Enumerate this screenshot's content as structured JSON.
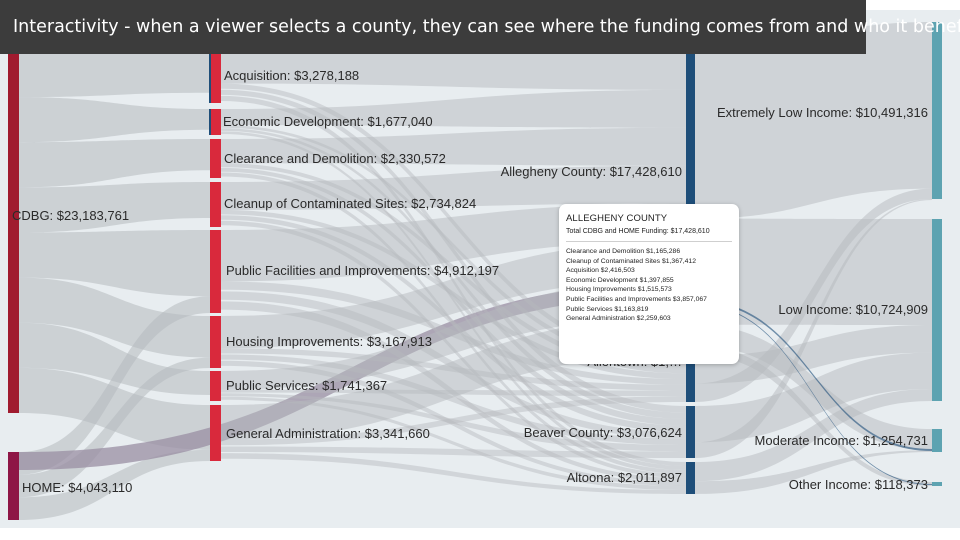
{
  "banner": {
    "text": "Interactivity - when a viewer selects a county, they can see where the funding comes from and who it benefits"
  },
  "tooltip": {
    "title": "ALLEGHENY COUNTY",
    "total": "Total CDBG and HOME Funding: $17,428,610",
    "rows": [
      "Clearance and Demolition $1,165,286",
      "Cleanup of Contaminated Sites $1,367,412",
      "Acquisition $2,416,503",
      "Economic Development $1,397,855",
      "Housing Improvements $1,515,573",
      "Public Facilities and Improvements $3,857,067",
      "Public Services $1,163,819",
      "General Administration $2,259,603"
    ]
  },
  "colors": {
    "cdbg": "#a01b2f",
    "home": "#8e1646",
    "category": "#d9293c",
    "county": "#1e4e79",
    "income": "#5da3b1",
    "link": "#b5b9bd",
    "highlight": "#9a8ea3",
    "background": "#e8edf0"
  },
  "chart_data": {
    "type": "sankey",
    "columns": [
      {
        "name": "sources",
        "nodes": [
          {
            "label": "CDBG: $23,183,761",
            "value": 23183761
          },
          {
            "label": "HOME: $4,043,110",
            "value": 4043110
          }
        ]
      },
      {
        "name": "activities",
        "nodes": [
          {
            "label": "Acquisition: $3,278,188",
            "value": 3278188
          },
          {
            "label": "Economic Development: $1,677,040",
            "value": 1677040
          },
          {
            "label": "Clearance and Demolition: $2,330,572",
            "value": 2330572
          },
          {
            "label": "Cleanup of Contaminated Sites: $2,734,824",
            "value": 2734824
          },
          {
            "label": "Public Facilities and Improvements: $4,912,197",
            "value": 4912197
          },
          {
            "label": "Housing Improvements: $3,167,913",
            "value": 3167913
          },
          {
            "label": "Public Services: $1,741,367",
            "value": 1741367
          },
          {
            "label": "General Administration: $3,341,660",
            "value": 3341660
          }
        ]
      },
      {
        "name": "recipients",
        "nodes": [
          {
            "label": "Allegheny County: $17,428,610",
            "value": 17428610
          },
          {
            "label": "Allentown: $1,…",
            "value": null
          },
          {
            "label": "Beaver County: $3,076,624",
            "value": 3076624
          },
          {
            "label": "Altoona: $2,011,897",
            "value": 2011897
          }
        ]
      },
      {
        "name": "beneficiaries",
        "nodes": [
          {
            "label": "Extremely Low Income: $10,491,316",
            "value": 10491316
          },
          {
            "label": "Low Income: $10,724,909",
            "value": 10724909
          },
          {
            "label": "Moderate Income: $1,254,731",
            "value": 1254731
          },
          {
            "label": "Other Income: $118,373",
            "value": 118373
          }
        ]
      }
    ],
    "selected": "Allegheny County: $17,428,610"
  }
}
